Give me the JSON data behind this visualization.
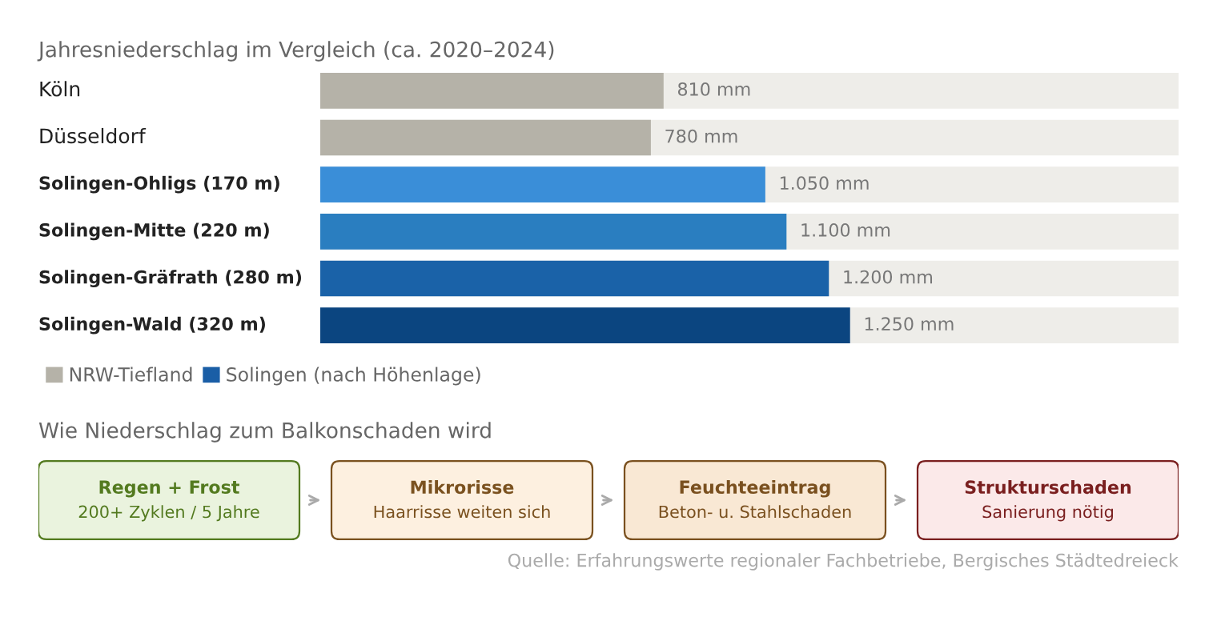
{
  "chart_data": [
    {
      "type": "bar",
      "orientation": "horizontal",
      "title": "Jahresniederschlag im Vergleich (ca. 2020–2024)",
      "categories": [
        "Köln",
        "Düsseldorf",
        "Solingen-Ohligs (170 m)",
        "Solingen-Mitte (220 m)",
        "Solingen-Gräfrath (280 m)",
        "Solingen-Wald (320 m)"
      ],
      "series": [
        {
          "name": "NRW-Tiefland",
          "color": "#b5b2a8",
          "values": [
            810,
            780,
            null,
            null,
            null,
            null
          ],
          "value_labels": [
            "810 mm",
            "780 mm",
            null,
            null,
            null,
            null
          ]
        },
        {
          "name": "Solingen (nach Höhenlage)",
          "color": "#1a5ea6",
          "colors": [
            null,
            null,
            "#3a8ed8",
            "#2a7ec0",
            "#1a62a8",
            "#0b4580"
          ],
          "values": [
            null,
            null,
            1050,
            1100,
            1200,
            1250
          ],
          "value_labels": [
            null,
            null,
            "1.050 mm",
            "1.100 mm",
            "1.200 mm",
            "1.250 mm"
          ]
        }
      ],
      "legend": "bottom left",
      "annotations": [
        "Quelle: Erfahrungswerte regionaler Fachbetriebe, Bergisches Städtedreieck"
      ]
    },
    {
      "type": "other",
      "title": "Wie Niederschlag zum Balkonschaden wird",
      "categories": [
        "Regen + Frost",
        "Mikrorisse",
        "Feuchteeintrag",
        "Strukturschaden"
      ],
      "annotations": [
        "200+ Zyklen / 5 Jahre",
        "Haarrisse weiten sich",
        "Beton- u. Stahlschaden",
        "Sanierung nötig"
      ],
      "colors": [
        "#eaf3de",
        "#fdf0e0",
        "#f9e8d4",
        "#fbe9e9"
      ]
    }
  ]
}
